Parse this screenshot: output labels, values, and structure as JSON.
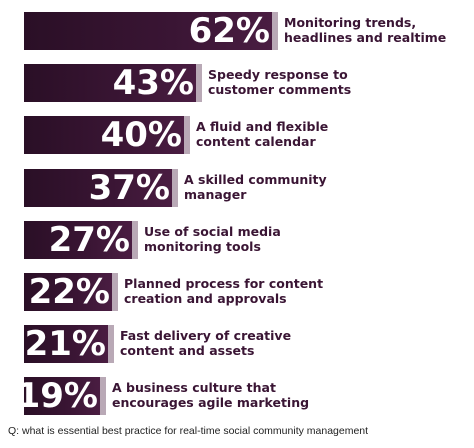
{
  "chart_data": {
    "type": "bar",
    "orientation": "horizontal",
    "categories": [
      "Monitoring trends, headlines and realtime",
      "Speedy response to customer comments",
      "A fluid and flexible content calendar",
      "A skilled community manager",
      "Use of social media monitoring tools",
      "Planned process for content creation and approvals",
      "Fast delivery of creative content and assets",
      "A business culture that encourages agile marketing"
    ],
    "category_lines": [
      [
        "Monitoring trends,",
        "headlines and realtime"
      ],
      [
        "Speedy response to",
        "customer comments"
      ],
      [
        "A fluid and flexible",
        "content calendar"
      ],
      [
        "A skilled community",
        "manager"
      ],
      [
        "Use of social media",
        "monitoring tools"
      ],
      [
        "Planned process for content",
        "creation and approvals"
      ],
      [
        "Fast delivery of creative",
        "content and assets"
      ],
      [
        "A business culture that",
        "encourages agile marketing"
      ]
    ],
    "values": [
      62,
      43,
      40,
      37,
      27,
      22,
      21,
      19
    ],
    "value_labels": [
      "62%",
      "43%",
      "40%",
      "37%",
      "27%",
      "22%",
      "21%",
      "19%"
    ],
    "xlim": [
      0,
      62
    ],
    "grid": false,
    "bar_color": "#3a1534",
    "label_color": "#3a1534"
  },
  "footnote": "Q: what is essential best practice for real-time social community management"
}
